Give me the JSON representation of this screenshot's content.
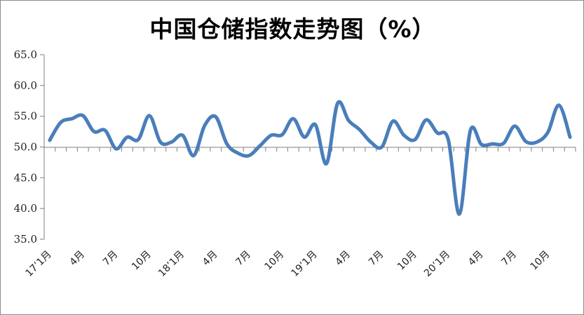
{
  "colors": {
    "series": "#4a7ebb",
    "axis": "#7f7f7f",
    "text": "#222222",
    "frame": "#8c8c8c"
  },
  "chart_data": {
    "type": "line",
    "title": "中国仓储指数走势图（%）",
    "xlabel": "",
    "ylabel": "",
    "ylim": [
      35.0,
      65.0
    ],
    "yticks": [
      "65.0",
      "60.0",
      "55.0",
      "50.0",
      "45.0",
      "40.0",
      "35.0"
    ],
    "ytick_values": [
      65,
      60,
      55,
      50,
      45,
      40,
      35
    ],
    "x": [
      "2017-01",
      "2017-02",
      "2017-03",
      "2017-04",
      "2017-05",
      "2017-06",
      "2017-07",
      "2017-08",
      "2017-09",
      "2017-10",
      "2017-11",
      "2017-12",
      "2018-01",
      "2018-02",
      "2018-03",
      "2018-04",
      "2018-05",
      "2018-06",
      "2018-07",
      "2018-08",
      "2018-09",
      "2018-10",
      "2018-11",
      "2018-12",
      "2019-01",
      "2019-02",
      "2019-03",
      "2019-04",
      "2019-05",
      "2019-06",
      "2019-07",
      "2019-08",
      "2019-09",
      "2019-10",
      "2019-11",
      "2019-12",
      "2020-01",
      "2020-02",
      "2020-03",
      "2020-04",
      "2020-05",
      "2020-06",
      "2020-07",
      "2020-08",
      "2020-09",
      "2020-10",
      "2020-11",
      "2020-12"
    ],
    "xtick_labels": [
      "17’1月",
      "4月",
      "7月",
      "10月",
      "18’1月",
      "4月",
      "7月",
      "10月",
      "19’1月",
      "4月",
      "7月",
      "10月",
      "20’1月",
      "4月",
      "7月",
      "10月"
    ],
    "series": [
      {
        "values": [
          51.1,
          54.0,
          54.6,
          55.1,
          52.5,
          52.7,
          49.7,
          51.6,
          51.2,
          55.1,
          50.8,
          50.8,
          51.9,
          48.6,
          53.5,
          54.9,
          50.5,
          49.0,
          48.6,
          50.2,
          51.9,
          52.0,
          54.6,
          51.6,
          53.6,
          47.3,
          57.1,
          54.3,
          52.8,
          50.8,
          50.0,
          54.2,
          51.9,
          51.2,
          54.4,
          52.3,
          51.2,
          39.1,
          52.7,
          50.4,
          50.5,
          50.6,
          53.4,
          50.9,
          50.8,
          52.4,
          56.8,
          51.6
        ]
      }
    ],
    "grid": false,
    "legend": "none"
  }
}
